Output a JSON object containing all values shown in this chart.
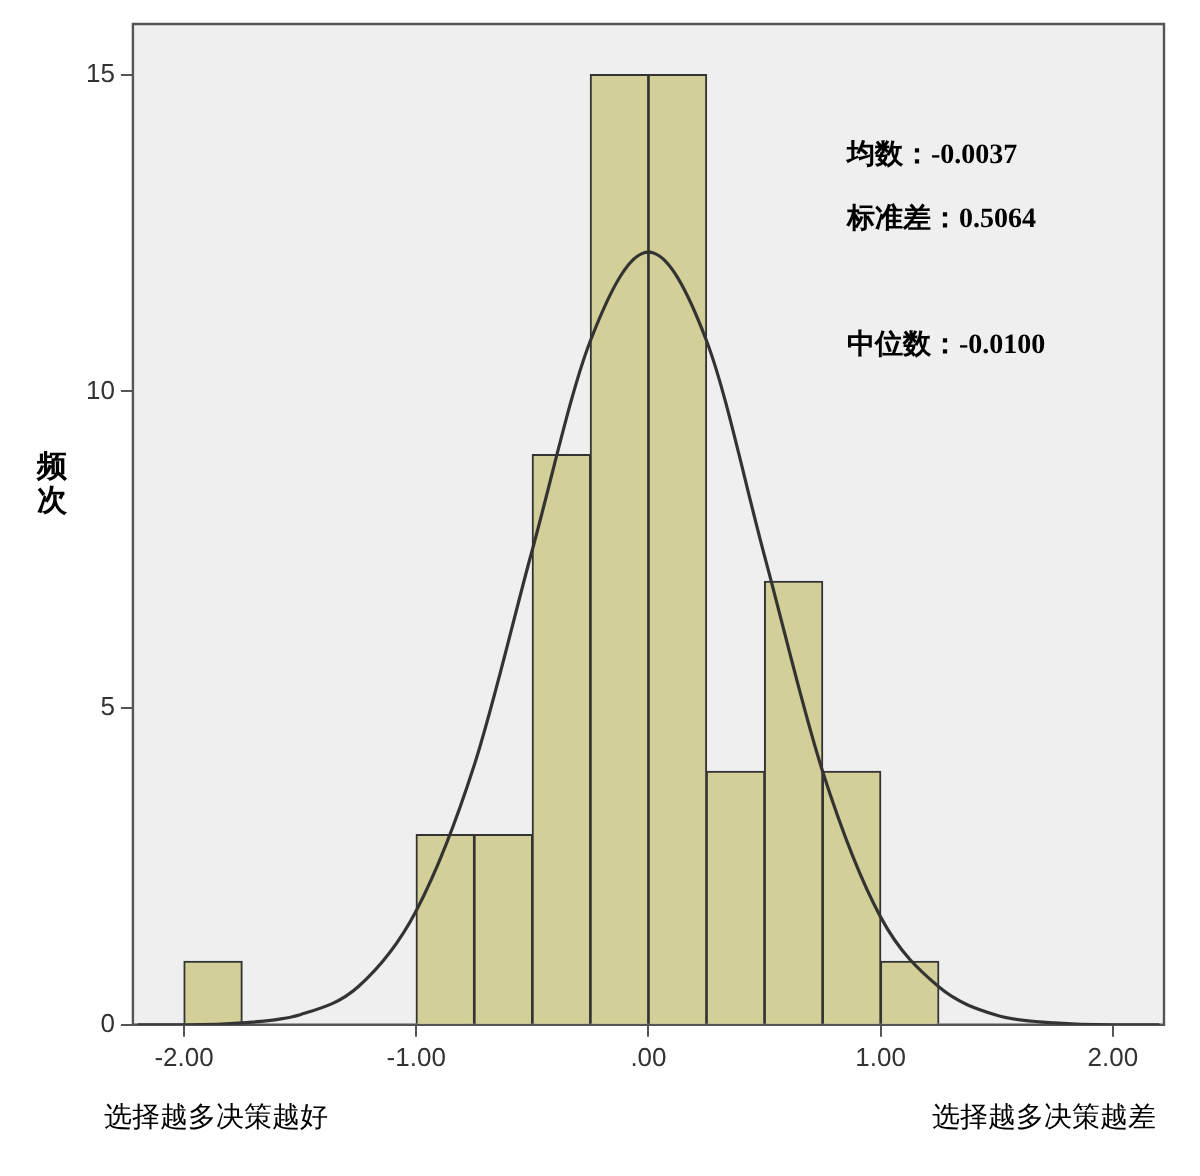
{
  "chart_data": {
    "type": "histogram",
    "ylabel": "频次",
    "bins": [
      -2.0,
      -1.75,
      -1.5,
      -1.25,
      -1.0,
      -0.75,
      -0.5,
      -0.25,
      0.0,
      0.25,
      0.5,
      0.75,
      1.0,
      1.25
    ],
    "values": [
      1,
      0,
      0,
      0,
      3,
      3,
      9,
      15,
      15,
      4,
      7,
      4,
      1
    ],
    "color": "#d3cf98",
    "series": [
      {
        "type": "line",
        "color": "#333333",
        "x": [
          -2.2,
          -2.0,
          -1.75,
          -1.5,
          -1.25,
          -1.0,
          -0.75,
          -0.5,
          -0.25,
          0.0,
          0.25,
          0.5,
          0.75,
          1.0,
          1.25,
          1.5,
          1.75,
          2.0,
          2.2
        ],
        "values": [
          0.0,
          0.0,
          0.03,
          0.16,
          0.6,
          1.8,
          4.1,
          7.5,
          10.8,
          12.2,
          10.8,
          7.4,
          4.0,
          1.7,
          0.6,
          0.15,
          0.03,
          0.0,
          0.0
        ]
      }
    ],
    "xlim": [
      -2.22,
      2.22
    ],
    "ylim": [
      0,
      15.8
    ],
    "xticks": [
      {
        "value": -2,
        "label": "-2.00"
      },
      {
        "value": -1,
        "label": "-1.00"
      },
      {
        "value": 0,
        "label": ".00"
      },
      {
        "value": 1,
        "label": "1.00"
      },
      {
        "value": 2,
        "label": "2.00"
      }
    ],
    "yticks": [
      0,
      5,
      10,
      15
    ],
    "grid": false,
    "legend": false,
    "annotations": [
      "均数：-0.0037",
      "标准差：0.5064",
      "中位数：-0.0100",
      "选择越多决策越好",
      "选择越多决策越差"
    ]
  }
}
